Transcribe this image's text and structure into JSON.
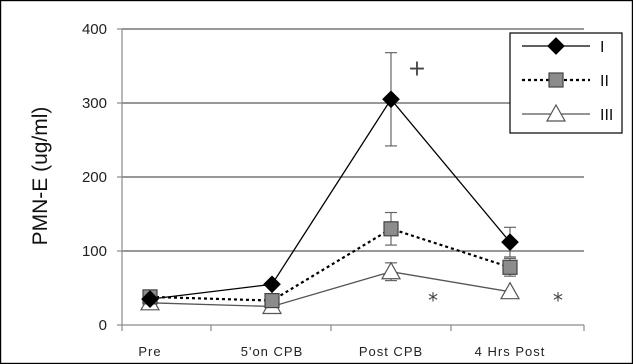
{
  "chart_data": {
    "type": "line",
    "title": "",
    "ylabel": "PMN-E (ug/ml)",
    "xlabel": "",
    "categories": [
      "Pre",
      "5'on CPB",
      "Post CPB",
      "4 Hrs Post"
    ],
    "ylim": [
      0,
      400
    ],
    "yticks": [
      "0",
      "100",
      "200",
      "300",
      "400"
    ],
    "grid": true,
    "legend_position": "top-right",
    "series": [
      {
        "name": "I",
        "values": [
          35,
          55,
          305,
          112
        ],
        "error": [
          null,
          null,
          63,
          20
        ],
        "marker": "diamond",
        "line": "solid",
        "color": "#000000",
        "fill": "#000000"
      },
      {
        "name": "II",
        "values": [
          38,
          33,
          130,
          78
        ],
        "error": [
          null,
          null,
          22,
          12
        ],
        "marker": "square",
        "line": "dotted",
        "color": "#000000",
        "fill": "#8c8c8c"
      },
      {
        "name": "III",
        "values": [
          30,
          25,
          72,
          45
        ],
        "error": [
          null,
          null,
          12,
          null
        ],
        "marker": "triangle",
        "line": "solid",
        "color": "#555555",
        "fill": "#ffffff"
      }
    ],
    "annotations": [
      {
        "text": "+",
        "category": 2,
        "value": 345
      },
      {
        "text": "*",
        "category": 2,
        "value": 40
      },
      {
        "text": "*",
        "category": 3,
        "value": 40
      }
    ]
  }
}
